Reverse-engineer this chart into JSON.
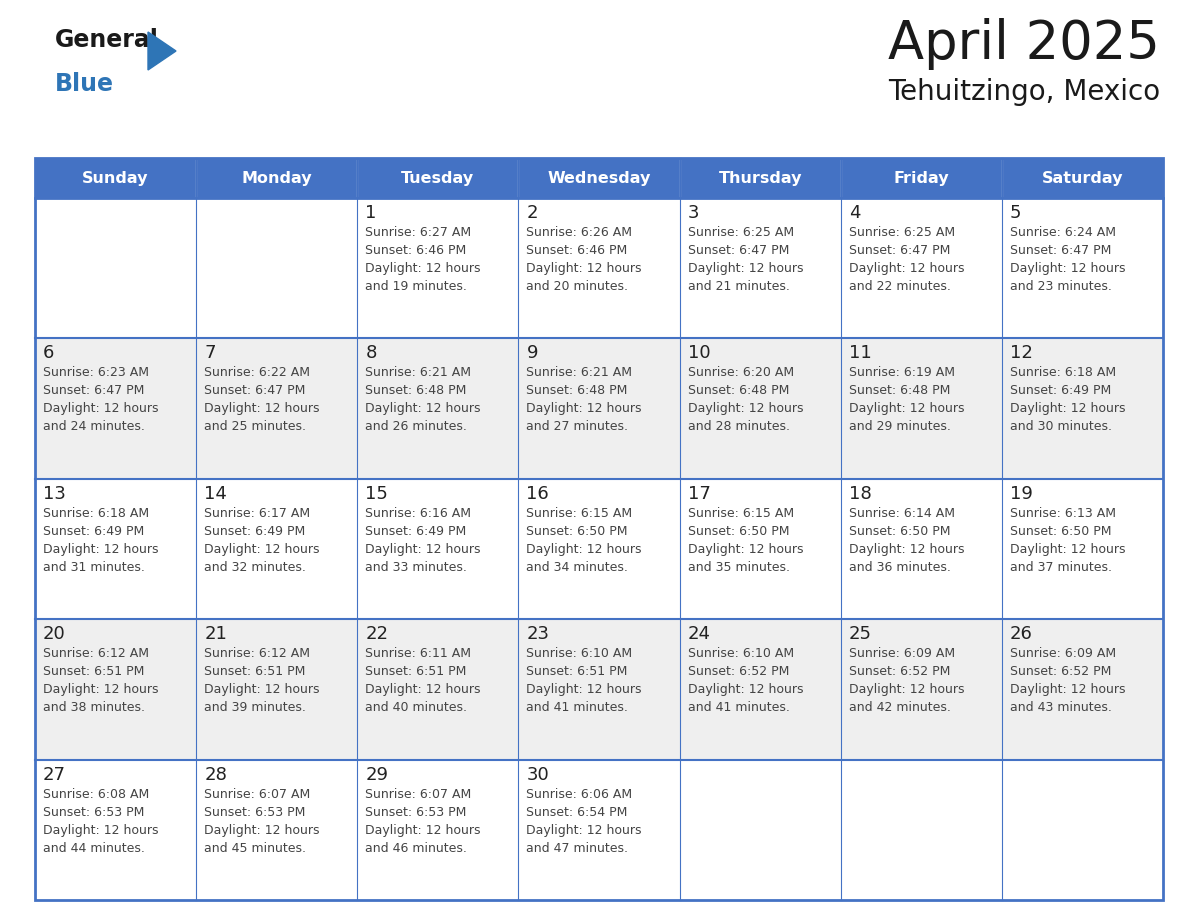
{
  "title": "April 2025",
  "subtitle": "Tehuitzingo, Mexico",
  "days_of_week": [
    "Sunday",
    "Monday",
    "Tuesday",
    "Wednesday",
    "Thursday",
    "Friday",
    "Saturday"
  ],
  "header_bg": "#4472C4",
  "header_text": "#FFFFFF",
  "cell_bg_white": "#FFFFFF",
  "cell_bg_gray": "#EFEFEF",
  "border_color": "#4472C4",
  "title_color": "#1a1a1a",
  "text_color": "#444444",
  "day_num_color": "#222222",
  "logo_general_color": "#1a1a1a",
  "logo_blue_color": "#2E75B6",
  "logo_triangle_color": "#2E75B6",
  "weeks": [
    [
      {
        "day": "",
        "sunrise": "",
        "sunset": "",
        "daylight_hours": 0,
        "daylight_minutes": 0
      },
      {
        "day": "",
        "sunrise": "",
        "sunset": "",
        "daylight_hours": 0,
        "daylight_minutes": 0
      },
      {
        "day": "1",
        "sunrise": "6:27 AM",
        "sunset": "6:46 PM",
        "daylight_hours": 12,
        "daylight_minutes": 19
      },
      {
        "day": "2",
        "sunrise": "6:26 AM",
        "sunset": "6:46 PM",
        "daylight_hours": 12,
        "daylight_minutes": 20
      },
      {
        "day": "3",
        "sunrise": "6:25 AM",
        "sunset": "6:47 PM",
        "daylight_hours": 12,
        "daylight_minutes": 21
      },
      {
        "day": "4",
        "sunrise": "6:25 AM",
        "sunset": "6:47 PM",
        "daylight_hours": 12,
        "daylight_minutes": 22
      },
      {
        "day": "5",
        "sunrise": "6:24 AM",
        "sunset": "6:47 PM",
        "daylight_hours": 12,
        "daylight_minutes": 23
      }
    ],
    [
      {
        "day": "6",
        "sunrise": "6:23 AM",
        "sunset": "6:47 PM",
        "daylight_hours": 12,
        "daylight_minutes": 24
      },
      {
        "day": "7",
        "sunrise": "6:22 AM",
        "sunset": "6:47 PM",
        "daylight_hours": 12,
        "daylight_minutes": 25
      },
      {
        "day": "8",
        "sunrise": "6:21 AM",
        "sunset": "6:48 PM",
        "daylight_hours": 12,
        "daylight_minutes": 26
      },
      {
        "day": "9",
        "sunrise": "6:21 AM",
        "sunset": "6:48 PM",
        "daylight_hours": 12,
        "daylight_minutes": 27
      },
      {
        "day": "10",
        "sunrise": "6:20 AM",
        "sunset": "6:48 PM",
        "daylight_hours": 12,
        "daylight_minutes": 28
      },
      {
        "day": "11",
        "sunrise": "6:19 AM",
        "sunset": "6:48 PM",
        "daylight_hours": 12,
        "daylight_minutes": 29
      },
      {
        "day": "12",
        "sunrise": "6:18 AM",
        "sunset": "6:49 PM",
        "daylight_hours": 12,
        "daylight_minutes": 30
      }
    ],
    [
      {
        "day": "13",
        "sunrise": "6:18 AM",
        "sunset": "6:49 PM",
        "daylight_hours": 12,
        "daylight_minutes": 31
      },
      {
        "day": "14",
        "sunrise": "6:17 AM",
        "sunset": "6:49 PM",
        "daylight_hours": 12,
        "daylight_minutes": 32
      },
      {
        "day": "15",
        "sunrise": "6:16 AM",
        "sunset": "6:49 PM",
        "daylight_hours": 12,
        "daylight_minutes": 33
      },
      {
        "day": "16",
        "sunrise": "6:15 AM",
        "sunset": "6:50 PM",
        "daylight_hours": 12,
        "daylight_minutes": 34
      },
      {
        "day": "17",
        "sunrise": "6:15 AM",
        "sunset": "6:50 PM",
        "daylight_hours": 12,
        "daylight_minutes": 35
      },
      {
        "day": "18",
        "sunrise": "6:14 AM",
        "sunset": "6:50 PM",
        "daylight_hours": 12,
        "daylight_minutes": 36
      },
      {
        "day": "19",
        "sunrise": "6:13 AM",
        "sunset": "6:50 PM",
        "daylight_hours": 12,
        "daylight_minutes": 37
      }
    ],
    [
      {
        "day": "20",
        "sunrise": "6:12 AM",
        "sunset": "6:51 PM",
        "daylight_hours": 12,
        "daylight_minutes": 38
      },
      {
        "day": "21",
        "sunrise": "6:12 AM",
        "sunset": "6:51 PM",
        "daylight_hours": 12,
        "daylight_minutes": 39
      },
      {
        "day": "22",
        "sunrise": "6:11 AM",
        "sunset": "6:51 PM",
        "daylight_hours": 12,
        "daylight_minutes": 40
      },
      {
        "day": "23",
        "sunrise": "6:10 AM",
        "sunset": "6:51 PM",
        "daylight_hours": 12,
        "daylight_minutes": 41
      },
      {
        "day": "24",
        "sunrise": "6:10 AM",
        "sunset": "6:52 PM",
        "daylight_hours": 12,
        "daylight_minutes": 41
      },
      {
        "day": "25",
        "sunrise": "6:09 AM",
        "sunset": "6:52 PM",
        "daylight_hours": 12,
        "daylight_minutes": 42
      },
      {
        "day": "26",
        "sunrise": "6:09 AM",
        "sunset": "6:52 PM",
        "daylight_hours": 12,
        "daylight_minutes": 43
      }
    ],
    [
      {
        "day": "27",
        "sunrise": "6:08 AM",
        "sunset": "6:53 PM",
        "daylight_hours": 12,
        "daylight_minutes": 44
      },
      {
        "day": "28",
        "sunrise": "6:07 AM",
        "sunset": "6:53 PM",
        "daylight_hours": 12,
        "daylight_minutes": 45
      },
      {
        "day": "29",
        "sunrise": "6:07 AM",
        "sunset": "6:53 PM",
        "daylight_hours": 12,
        "daylight_minutes": 46
      },
      {
        "day": "30",
        "sunrise": "6:06 AM",
        "sunset": "6:54 PM",
        "daylight_hours": 12,
        "daylight_minutes": 47
      },
      {
        "day": "",
        "sunrise": "",
        "sunset": "",
        "daylight_hours": 0,
        "daylight_minutes": 0
      },
      {
        "day": "",
        "sunrise": "",
        "sunset": "",
        "daylight_hours": 0,
        "daylight_minutes": 0
      },
      {
        "day": "",
        "sunrise": "",
        "sunset": "",
        "daylight_hours": 0,
        "daylight_minutes": 0
      }
    ]
  ]
}
